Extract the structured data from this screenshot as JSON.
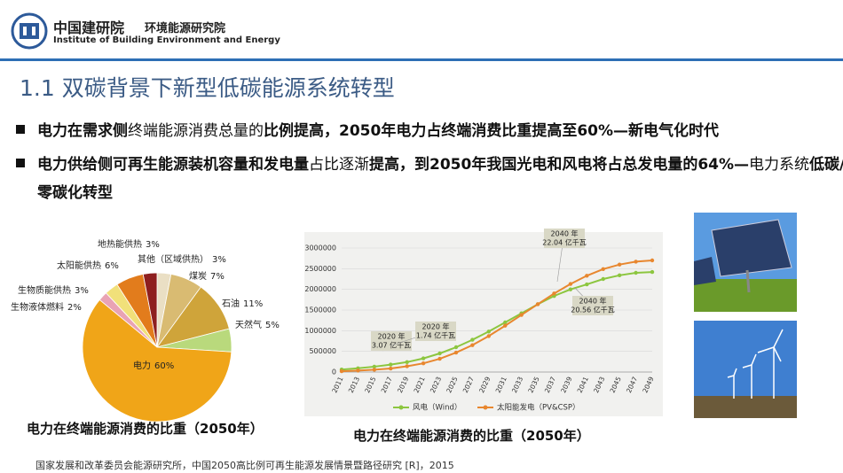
{
  "header": {
    "logo_cn": "中国建研院",
    "dept": "环境能源研究院",
    "dept_en": "Institute of Building Environment and Energy"
  },
  "title": "1.1 双碳背景下新型低碳能源系统转型",
  "bullets": [
    {
      "segments": [
        {
          "text": "电力在需求侧",
          "bold": true
        },
        {
          "text": "终端能源消费总量的",
          "bold": false
        },
        {
          "text": "比例提高，2050年电力占终端消费比重提高至60%—新电气化时代",
          "bold": true
        }
      ]
    },
    {
      "segments": [
        {
          "text": "电力供给侧可再生能源装机容量和发电量",
          "bold": true
        },
        {
          "text": "占比逐渐",
          "bold": false
        },
        {
          "text": "提高，到2050年我国光电和风电将占总发电量的64%—",
          "bold": true
        },
        {
          "text": "电力系统",
          "bold": false
        },
        {
          "text": "低碳/零碳化转型",
          "bold": true
        }
      ]
    }
  ],
  "chart_data": [
    {
      "type": "pie",
      "caption": "电力在终端能源消费的比重（2050年）",
      "categories": [
        "其他（区域供热）",
        "煤炭",
        "石油",
        "天然气",
        "电力",
        "生物液体燃料",
        "生物质能供热",
        "太阳能供热",
        "地热能供热"
      ],
      "values": [
        3,
        7,
        11,
        5,
        60,
        2,
        3,
        6,
        3
      ],
      "value_labels": [
        "3%",
        "7%",
        "11%",
        "5%",
        "60%",
        "2%",
        "3%",
        "6%",
        "3%"
      ],
      "colors": [
        "#eadfc4",
        "#d9bb72",
        "#cfa43a",
        "#b9d97c",
        "#f0a518",
        "#e9a3b4",
        "#f1e07a",
        "#e27c1c",
        "#8e1f1f"
      ]
    },
    {
      "type": "line",
      "caption": "电力在终端能源消费的比重（2050年）",
      "categories": [
        "2011",
        "2013",
        "2015",
        "2017",
        "2019",
        "2021",
        "2023",
        "2025",
        "2027",
        "2029",
        "2031",
        "2033",
        "2035",
        "2037",
        "2039",
        "2041",
        "2043",
        "2045",
        "2047",
        "2049"
      ],
      "ylim": [
        0,
        3000000
      ],
      "yticks": [
        0,
        500000,
        1000000,
        1500000,
        2000000,
        2500000,
        3000000
      ],
      "grid": true,
      "series": [
        {
          "name": "风电（Wind）",
          "color": "#8cc63f",
          "values": [
            60000,
            90000,
            130000,
            180000,
            240000,
            330000,
            450000,
            600000,
            780000,
            980000,
            1200000,
            1420000,
            1640000,
            1840000,
            2000000,
            2120000,
            2250000,
            2340000,
            2400000,
            2420000
          ]
        },
        {
          "name": "太阳能发电（PV&CSP）",
          "color": "#e8872f",
          "values": [
            20000,
            35000,
            55000,
            85000,
            140000,
            210000,
            320000,
            470000,
            650000,
            870000,
            1120000,
            1380000,
            1640000,
            1900000,
            2130000,
            2330000,
            2490000,
            2600000,
            2670000,
            2700000
          ]
        }
      ],
      "annotations": [
        {
          "lines": [
            "2020 年",
            "3.07 亿千瓦"
          ]
        },
        {
          "lines": [
            "2020 年",
            "1.74 亿千瓦"
          ]
        },
        {
          "lines": [
            "2040 年",
            "22.04 亿千瓦"
          ]
        },
        {
          "lines": [
            "2040 年",
            "20.56 亿千瓦"
          ]
        }
      ]
    }
  ],
  "source": "国家发展和改革委员会能源研究所，中国2050高比例可再生能源发展情景暨路径研究 [R]，2015"
}
